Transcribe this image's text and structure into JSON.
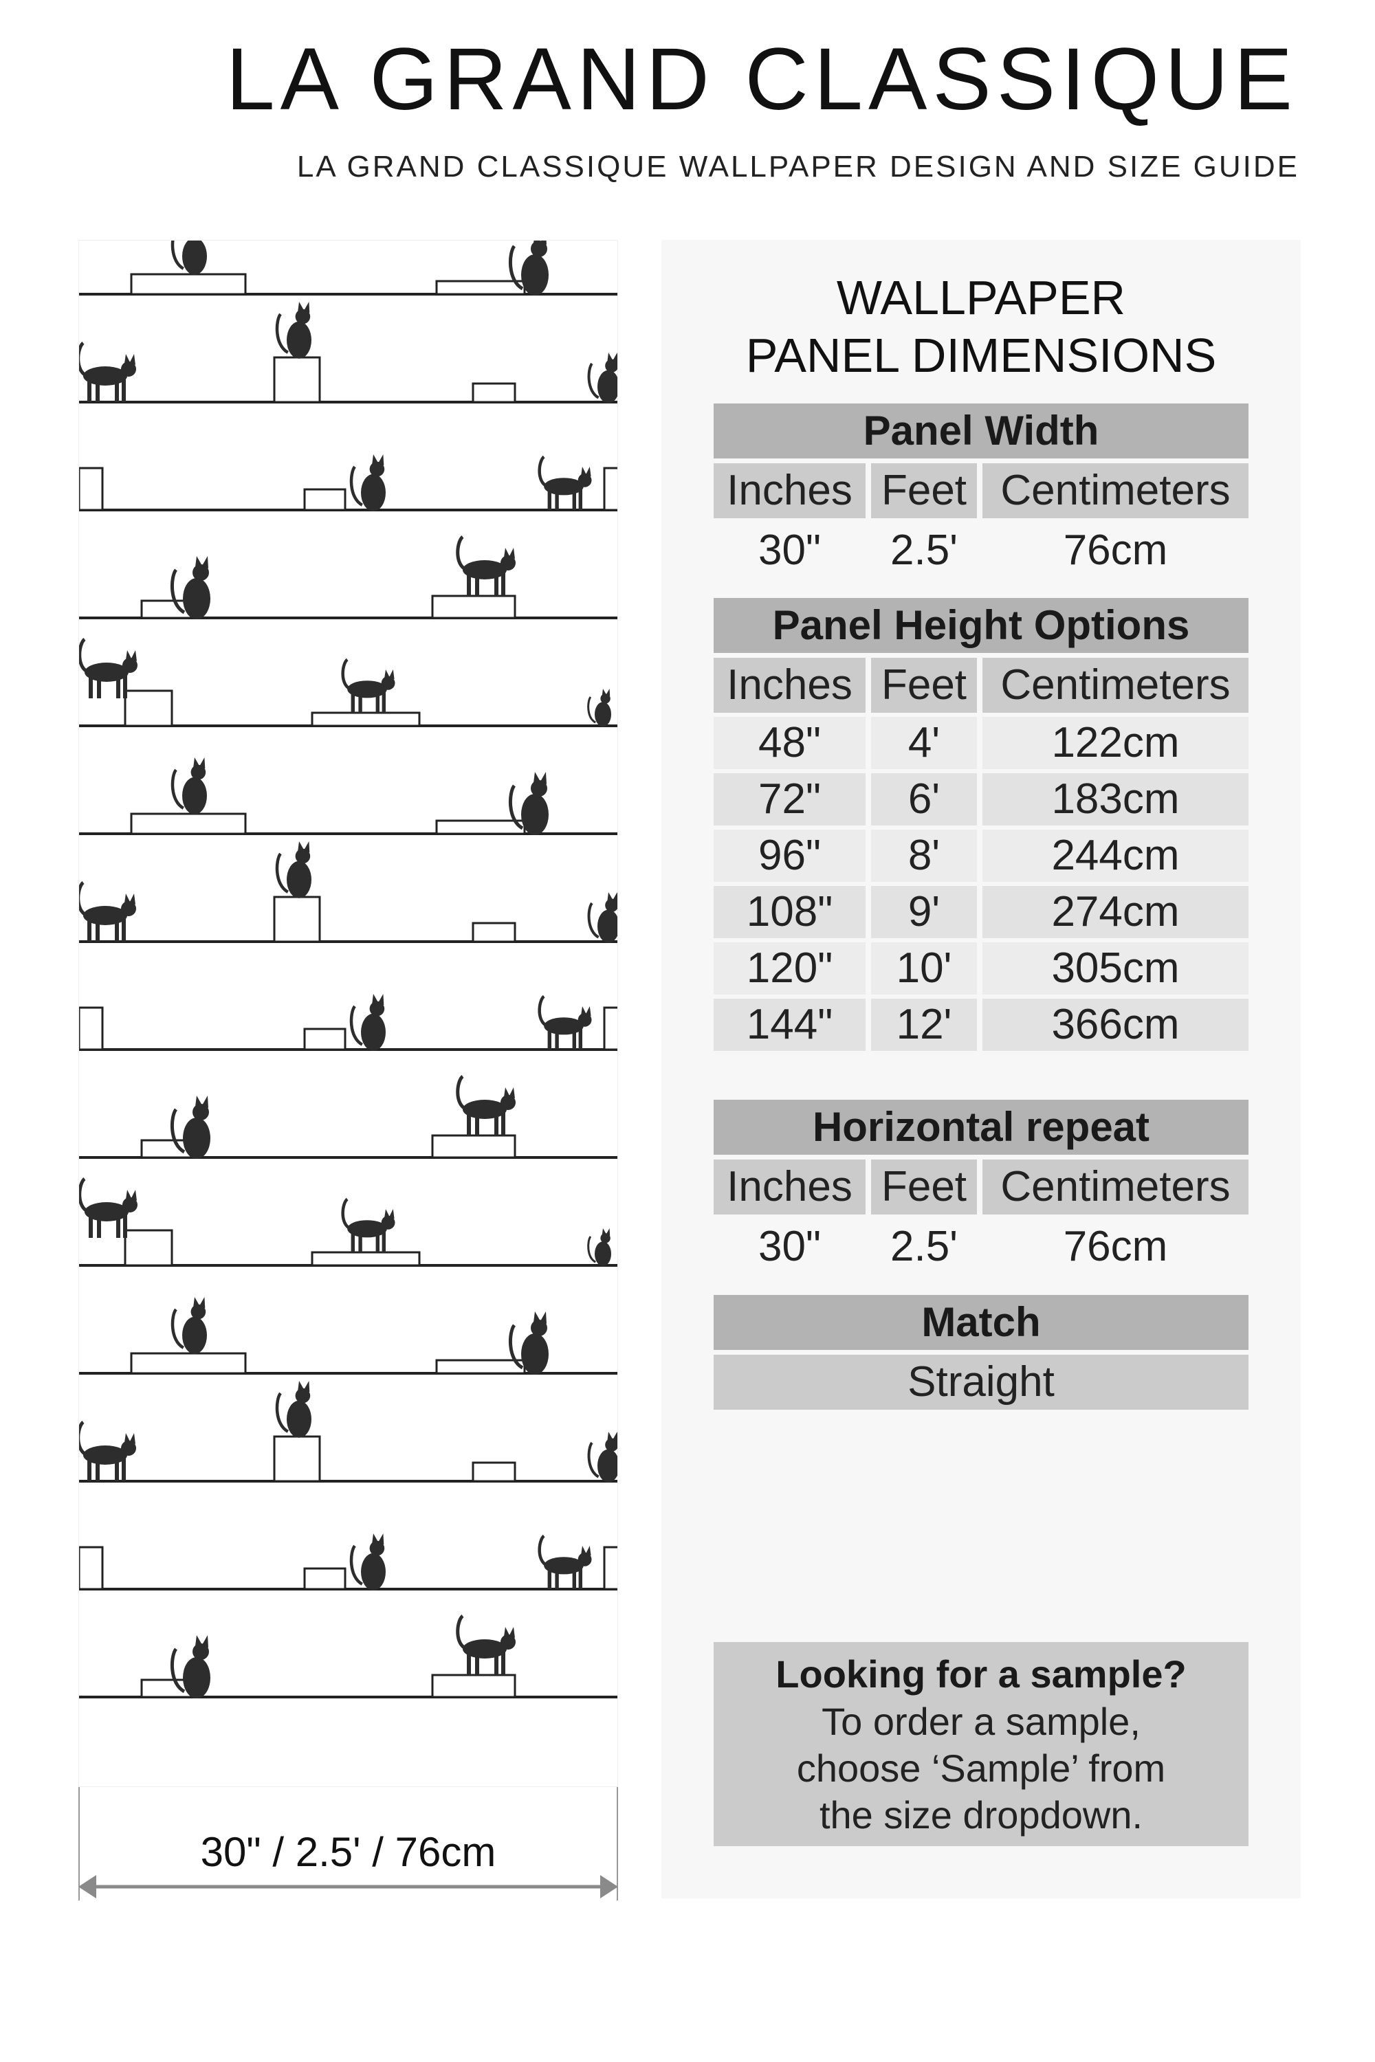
{
  "header": {
    "brand": "LA GRAND CLASSIQUE",
    "subtitle": "La Grand Classique wallpaper design and size guide"
  },
  "preview": {
    "pattern": "black cats on shelves",
    "dimension_label": "30\" / 2.5' / 76cm"
  },
  "specs": {
    "title_line1": "WALLPAPER",
    "title_line2": "PANEL DIMENSIONS",
    "columns": [
      "Inches",
      "Feet",
      "Centimeters"
    ],
    "panel_width": {
      "title": "Panel Width",
      "value": [
        "30\"",
        "2.5'",
        "76cm"
      ]
    },
    "panel_height": {
      "title": "Panel Height Options",
      "rows": [
        [
          "48\"",
          "4'",
          "122cm"
        ],
        [
          "72\"",
          "6'",
          "183cm"
        ],
        [
          "96\"",
          "8'",
          "244cm"
        ],
        [
          "108\"",
          "9'",
          "274cm"
        ],
        [
          "120\"",
          "10'",
          "305cm"
        ],
        [
          "144\"",
          "12'",
          "366cm"
        ]
      ]
    },
    "horizontal_repeat": {
      "title": "Horizontal repeat",
      "value": [
        "30\"",
        "2.5'",
        "76cm"
      ]
    },
    "match": {
      "title": "Match",
      "value": "Straight"
    }
  },
  "sample": {
    "question": "Looking for a sample?",
    "line1": "To order a sample,",
    "line2": "choose ‘Sample’ from",
    "line3": "the size dropdown."
  },
  "colors": {
    "header_bg": "#b3b3b3",
    "subheader_bg": "#cbcbcb",
    "panel_bg": "#f7f7f7",
    "cat": "#2d2d2d"
  }
}
